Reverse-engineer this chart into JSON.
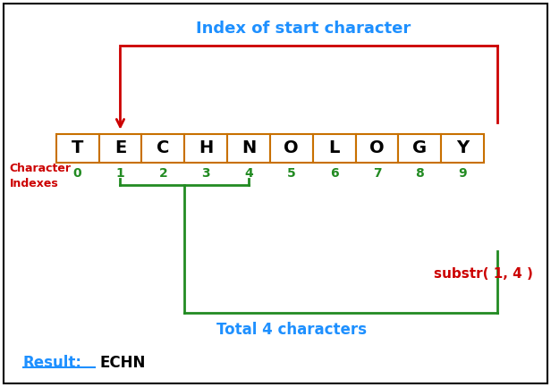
{
  "word": [
    "T",
    "E",
    "C",
    "H",
    "N",
    "O",
    "L",
    "O",
    "G",
    "Y"
  ],
  "indexes": [
    0,
    1,
    2,
    3,
    4,
    5,
    6,
    7,
    8,
    9
  ],
  "box_color": "#c87000",
  "box_face": "#ffffff",
  "index_color": "#228B22",
  "title_text": "Index of start character",
  "title_color": "#1E90FF",
  "char_label_line1": "Character",
  "char_label_line2": "Indexes",
  "char_label_color": "#cc0000",
  "substr_text": "substr( 1, 4 )",
  "substr_color": "#cc0000",
  "total_text": "Total 4 characters",
  "total_color": "#1E90FF",
  "result_label": "Result:",
  "result_value": "ECHN",
  "result_color": "#1E90FF",
  "arrow_red_color": "#cc0000",
  "bracket_green_color": "#228B22",
  "bg_color": "#ffffff",
  "border_color": "#000000"
}
